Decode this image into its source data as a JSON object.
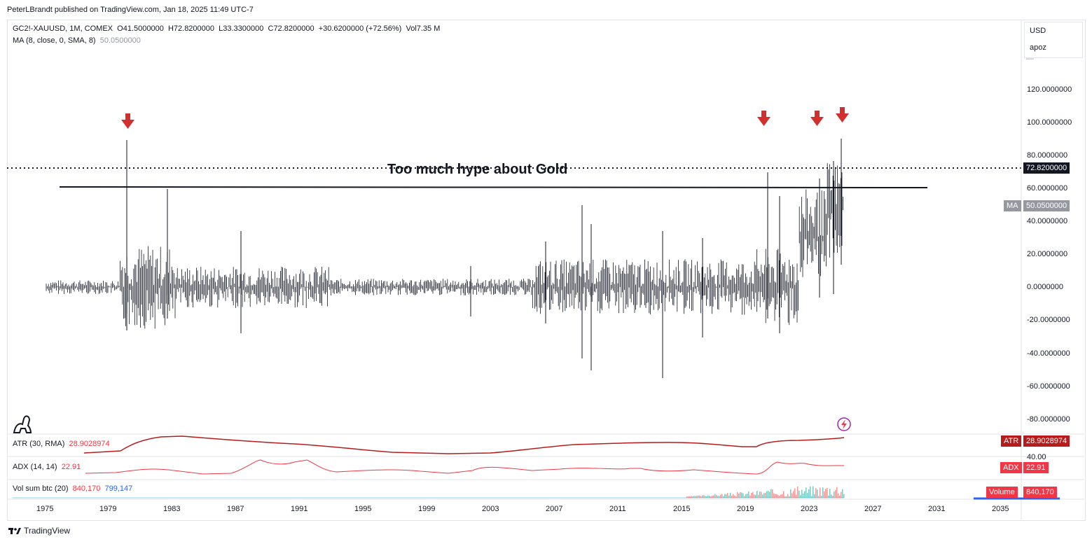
{
  "header": {
    "published": "PeterLBrandt published on TradingView.com, Jan 18, 2025 11:49 UTC-7"
  },
  "legend": {
    "symbol": "GC2!-XAUUSD, 1M, COMEX",
    "open": "O41.5000000",
    "high": "H72.8200000",
    "low": "L33.3300000",
    "close": "C72.8200000",
    "change": "+30.6200000 (+72.56%)",
    "volume": "Vol7.35 M",
    "ma_label": "MA (8, close, 0, SMA, 8)",
    "ma_value": "50.0500000"
  },
  "scale": {
    "currency": "USD",
    "mode": "apoz",
    "ticks": [
      "120.0000000",
      "100.0000000",
      "80.0000000",
      "60.0000000",
      "40.0000000",
      "20.0000000",
      "0.0000000",
      "-20.0000000",
      "-40.0000000",
      "-60.0000000",
      "-80.0000000"
    ],
    "last_price_tag": "72.8200000",
    "ma_tag_label": "MA",
    "ma_tag_value": "50.0500000"
  },
  "annotation": {
    "text": "Too much hype about Gold"
  },
  "indicators": {
    "atr_label": "ATR (30, RMA)",
    "atr_value": "28.9028974",
    "atr_tag": "ATR",
    "adx_label": "ADX (14, 14)",
    "adx_value": "22.91",
    "adx_tag": "ADX",
    "adx_tick": "40.00",
    "vol_label": "Vol sum btc (20)",
    "vol_value1": "840,170",
    "vol_value2": "799,147",
    "vol_tag": "Volume"
  },
  "time_axis": [
    "1975",
    "1979",
    "1983",
    "1987",
    "1991",
    "1995",
    "1999",
    "2003",
    "2007",
    "2011",
    "2015",
    "2019",
    "2023",
    "2027",
    "2031",
    "2035"
  ],
  "colors": {
    "arrow": "#d32f2f",
    "atr_line": "#b71c1c",
    "adx_line": "#f23645",
    "last_price_tag_bg": "#131722",
    "ma_tag_bg": "#9598a1",
    "volume_tag_bg": "#f23645"
  },
  "footer": {
    "brand": "TradingView"
  }
}
